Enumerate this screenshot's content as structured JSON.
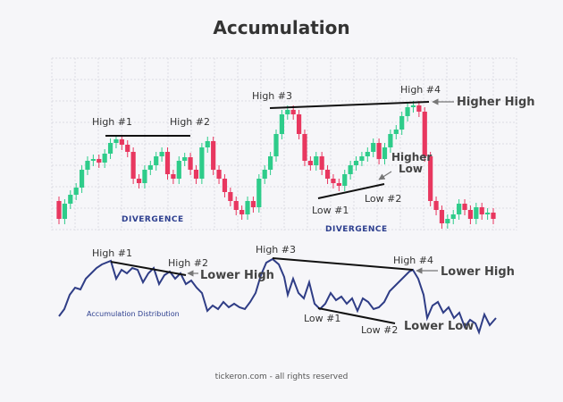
{
  "title": "Accumulation",
  "price_panel": {
    "labels": {
      "high1": "High #1",
      "high2": "High #2",
      "high3": "High #3",
      "high4": "High #4",
      "low1": "Low #1",
      "low2": "Low #2"
    },
    "callouts": {
      "higher_high": "Higher High",
      "higher_low": [
        "Higher",
        "Low"
      ]
    },
    "divergence": [
      "DIVERGENCE",
      "DIVERGENCE"
    ]
  },
  "indicator_panel": {
    "name": "Accumulation Distribution",
    "labels": {
      "high1": "High #1",
      "high2": "High #2",
      "high3": "High #3",
      "high4": "High #4",
      "low1": "Low #1",
      "low2": "Low #2"
    },
    "callouts": {
      "lower_high_1": "Lower High",
      "lower_high_2": "Lower High",
      "lower_low": "Lower Low"
    }
  },
  "footer": "tickeron.com - all rights reserved"
}
